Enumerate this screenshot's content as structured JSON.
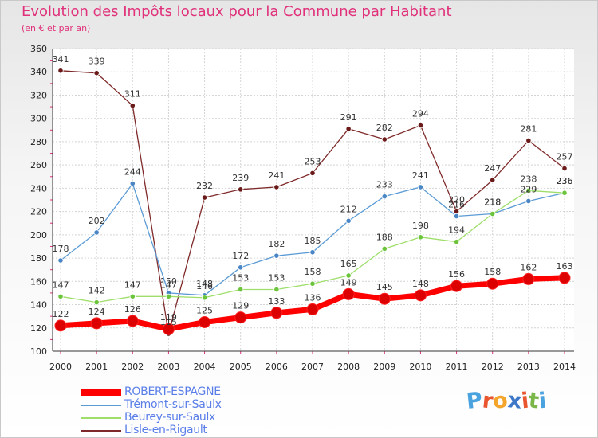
{
  "title": "Evolution des Impôts locaux pour la Commune par Habitant",
  "subtitle": "(en € et par an)",
  "logo_text": "Proxiti",
  "logo_colors": [
    "#4aa3df",
    "#e8552e",
    "#f4a52b",
    "#3c77c8",
    "#e8552e",
    "#7ab648",
    "#4aa3df"
  ],
  "chart_data": {
    "type": "line",
    "x": [
      "2000",
      "2001",
      "2002",
      "2003",
      "2004",
      "2005",
      "2006",
      "2007",
      "2008",
      "2009",
      "2010",
      "2011",
      "2012",
      "2013",
      "2014"
    ],
    "ylim": [
      100,
      360
    ],
    "yticks": [
      100,
      120,
      140,
      160,
      180,
      200,
      220,
      240,
      260,
      280,
      300,
      320,
      340,
      360
    ],
    "grid": true,
    "legend_position": "bottom-left",
    "series": [
      {
        "name": "ROBERT-ESPAGNE",
        "color": "#ff0000",
        "marker_color": "#dd0000",
        "values": [
          122,
          124,
          126,
          119,
          125,
          129,
          133,
          136,
          149,
          145,
          148,
          156,
          158,
          162,
          163
        ]
      },
      {
        "name": "Trémont-sur-Saulx",
        "color": "#5b9bd5",
        "marker_color": "#4a86c5",
        "values": [
          178,
          202,
          244,
          150,
          148,
          172,
          182,
          185,
          212,
          233,
          241,
          216,
          218,
          229,
          236
        ]
      },
      {
        "name": "Beurey-sur-Saulx",
        "color": "#9ede6a",
        "marker_color": "#6cc43c",
        "values": [
          147,
          142,
          147,
          147,
          146,
          153,
          153,
          158,
          165,
          188,
          198,
          194,
          218,
          238,
          236
        ]
      },
      {
        "name": "Lisle-en-Rigault",
        "color": "#7f2a2a",
        "marker_color": "#6b1a1a",
        "values": [
          341,
          339,
          311,
          115,
          232,
          239,
          241,
          253,
          291,
          282,
          294,
          220,
          247,
          281,
          257
        ]
      }
    ],
    "data_labels": [
      [
        "122",
        "124",
        "126",
        "119",
        "125",
        "129",
        "133",
        "136",
        "149",
        "145",
        "148",
        "156",
        "158",
        "162",
        "163"
      ],
      [
        "178",
        "202",
        "244",
        "150",
        "148",
        "172",
        "182",
        "185",
        "212",
        "233",
        "241",
        "216",
        "218",
        "229",
        "236"
      ],
      [
        "147",
        "142",
        "147",
        "147",
        "146",
        "153",
        "153",
        "158",
        "165",
        "188",
        "198",
        "194",
        "218",
        "238",
        "236"
      ],
      [
        "341",
        "339",
        "311",
        "115",
        "232",
        "239",
        "241",
        "253",
        "291",
        "282",
        "294",
        "220",
        "247",
        "281",
        "257"
      ]
    ]
  }
}
